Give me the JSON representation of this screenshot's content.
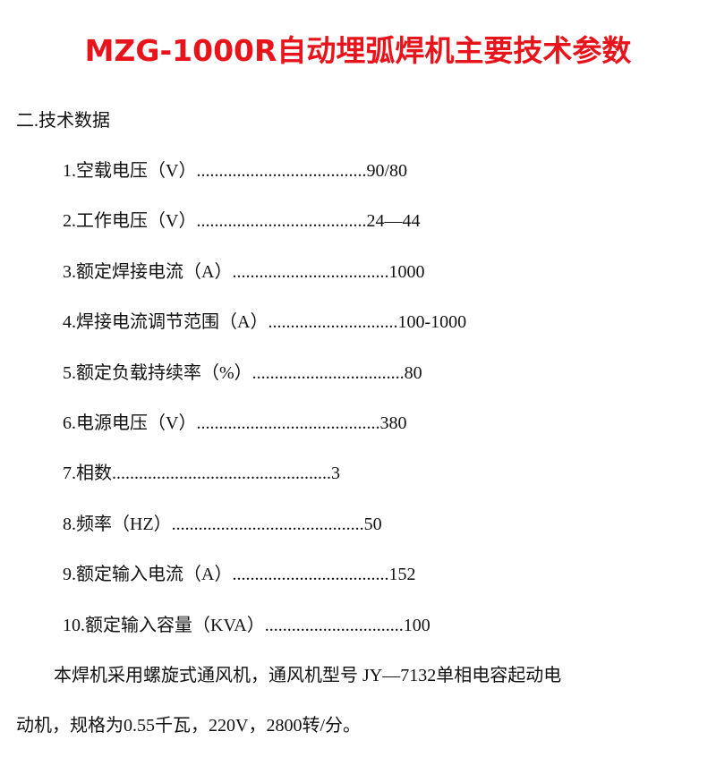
{
  "header": {
    "title": "MZG-1000R自动埋弧焊机主要技术参数"
  },
  "section": {
    "heading": "二.技术数据",
    "items": [
      "1.空载电压（V）......................................90/80",
      "2.工作电压（V）......................................24—44",
      "3.额定焊接电流（A）...................................1000",
      "4.焊接电流调节范围（A）.............................100-1000",
      "5.额定负载持续率（%）..................................80",
      "6.电源电压（V）.........................................380",
      "7.相数.................................................3",
      "8.频率（HZ）...........................................50",
      "9.额定输入电流（A）...................................152",
      "10.额定输入容量（KVA）...............................100"
    ]
  },
  "paragraph": {
    "lines": [
      "本焊机采用螺旋式通风机，通风机型号 JY—7132单相电容起动电",
      "动机，规格为0.55千瓦，220V，2800转/分。"
    ]
  }
}
